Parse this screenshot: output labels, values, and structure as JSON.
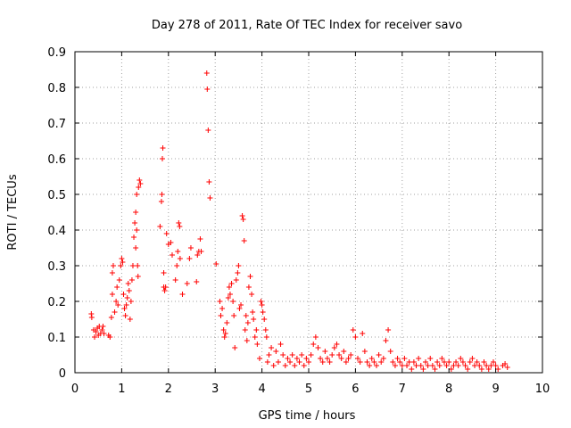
{
  "chart_data": {
    "type": "scatter",
    "title": "Day 278 of 2011, Rate Of TEC Index for receiver savo",
    "xlabel": "GPS time / hours",
    "ylabel": "ROTI / TECUs",
    "xlim": [
      0,
      10
    ],
    "ylim": [
      0,
      0.9
    ],
    "xticks": [
      "0",
      "1",
      "2",
      "3",
      "4",
      "5",
      "6",
      "7",
      "8",
      "9",
      "10"
    ],
    "yticks": [
      "0",
      "0.1",
      "0.2",
      "0.3",
      "0.4",
      "0.5",
      "0.6",
      "0.7",
      "0.8",
      "0.9"
    ],
    "grid": true,
    "marker": "plus",
    "series_color": "#ff0000",
    "series": [
      {
        "name": "ROTI",
        "points": [
          [
            0.35,
            0.165
          ],
          [
            0.36,
            0.155
          ],
          [
            0.4,
            0.12
          ],
          [
            0.42,
            0.1
          ],
          [
            0.45,
            0.115
          ],
          [
            0.48,
            0.125
          ],
          [
            0.5,
            0.105
          ],
          [
            0.52,
            0.13
          ],
          [
            0.55,
            0.11
          ],
          [
            0.58,
            0.12
          ],
          [
            0.6,
            0.13
          ],
          [
            0.62,
            0.11
          ],
          [
            0.72,
            0.105
          ],
          [
            0.75,
            0.1
          ],
          [
            0.78,
            0.155
          ],
          [
            0.8,
            0.22
          ],
          [
            0.8,
            0.28
          ],
          [
            0.82,
            0.3
          ],
          [
            0.85,
            0.17
          ],
          [
            0.88,
            0.2
          ],
          [
            0.9,
            0.24
          ],
          [
            0.92,
            0.19
          ],
          [
            0.95,
            0.26
          ],
          [
            0.98,
            0.3
          ],
          [
            1.0,
            0.32
          ],
          [
            1.02,
            0.31
          ],
          [
            1.04,
            0.22
          ],
          [
            1.06,
            0.18
          ],
          [
            1.08,
            0.16
          ],
          [
            1.1,
            0.19
          ],
          [
            1.12,
            0.21
          ],
          [
            1.14,
            0.25
          ],
          [
            1.16,
            0.23
          ],
          [
            1.18,
            0.15
          ],
          [
            1.2,
            0.2
          ],
          [
            1.22,
            0.26
          ],
          [
            1.24,
            0.3
          ],
          [
            1.26,
            0.38
          ],
          [
            1.28,
            0.42
          ],
          [
            1.3,
            0.45
          ],
          [
            1.32,
            0.4
          ],
          [
            1.34,
            0.3
          ],
          [
            1.36,
            0.52
          ],
          [
            1.38,
            0.54
          ],
          [
            1.4,
            0.53
          ],
          [
            1.3,
            0.35
          ],
          [
            1.35,
            0.27
          ],
          [
            1.32,
            0.5
          ],
          [
            1.82,
            0.41
          ],
          [
            1.85,
            0.48
          ],
          [
            1.86,
            0.5
          ],
          [
            1.87,
            0.6
          ],
          [
            1.88,
            0.63
          ],
          [
            1.9,
            0.28
          ],
          [
            1.9,
            0.24
          ],
          [
            1.92,
            0.23
          ],
          [
            1.94,
            0.24
          ],
          [
            1.96,
            0.39
          ],
          [
            2.0,
            0.36
          ],
          [
            2.05,
            0.365
          ],
          [
            2.08,
            0.33
          ],
          [
            2.15,
            0.26
          ],
          [
            2.18,
            0.3
          ],
          [
            2.2,
            0.34
          ],
          [
            2.22,
            0.42
          ],
          [
            2.24,
            0.41
          ],
          [
            2.25,
            0.32
          ],
          [
            2.3,
            0.22
          ],
          [
            2.4,
            0.25
          ],
          [
            2.45,
            0.32
          ],
          [
            2.48,
            0.35
          ],
          [
            2.6,
            0.255
          ],
          [
            2.62,
            0.33
          ],
          [
            2.65,
            0.34
          ],
          [
            2.68,
            0.375
          ],
          [
            2.7,
            0.34
          ],
          [
            2.82,
            0.84
          ],
          [
            2.83,
            0.795
          ],
          [
            2.85,
            0.68
          ],
          [
            2.87,
            0.535
          ],
          [
            2.89,
            0.49
          ],
          [
            3.02,
            0.305
          ],
          [
            3.1,
            0.2
          ],
          [
            3.12,
            0.16
          ],
          [
            3.15,
            0.18
          ],
          [
            3.18,
            0.12
          ],
          [
            3.2,
            0.1
          ],
          [
            3.22,
            0.11
          ],
          [
            3.25,
            0.14
          ],
          [
            3.28,
            0.21
          ],
          [
            3.3,
            0.24
          ],
          [
            3.32,
            0.22
          ],
          [
            3.35,
            0.25
          ],
          [
            3.38,
            0.2
          ],
          [
            3.4,
            0.16
          ],
          [
            3.42,
            0.07
          ],
          [
            3.45,
            0.26
          ],
          [
            3.48,
            0.28
          ],
          [
            3.5,
            0.3
          ],
          [
            3.52,
            0.18
          ],
          [
            3.55,
            0.19
          ],
          [
            3.58,
            0.44
          ],
          [
            3.6,
            0.43
          ],
          [
            3.62,
            0.37
          ],
          [
            3.64,
            0.12
          ],
          [
            3.66,
            0.16
          ],
          [
            3.68,
            0.09
          ],
          [
            3.7,
            0.14
          ],
          [
            3.72,
            0.24
          ],
          [
            3.75,
            0.27
          ],
          [
            3.78,
            0.22
          ],
          [
            3.8,
            0.17
          ],
          [
            3.82,
            0.15
          ],
          [
            3.85,
            0.1
          ],
          [
            3.88,
            0.12
          ],
          [
            3.9,
            0.08
          ],
          [
            3.95,
            0.04
          ],
          [
            3.98,
            0.2
          ],
          [
            4.0,
            0.19
          ],
          [
            4.02,
            0.17
          ],
          [
            4.05,
            0.15
          ],
          [
            4.08,
            0.12
          ],
          [
            4.1,
            0.1
          ],
          [
            4.12,
            0.03
          ],
          [
            4.15,
            0.05
          ],
          [
            4.2,
            0.07
          ],
          [
            4.25,
            0.02
          ],
          [
            4.3,
            0.06
          ],
          [
            4.35,
            0.03
          ],
          [
            4.4,
            0.08
          ],
          [
            4.45,
            0.05
          ],
          [
            4.5,
            0.02
          ],
          [
            4.55,
            0.04
          ],
          [
            4.6,
            0.03
          ],
          [
            4.65,
            0.05
          ],
          [
            4.7,
            0.02
          ],
          [
            4.75,
            0.04
          ],
          [
            4.8,
            0.03
          ],
          [
            4.85,
            0.05
          ],
          [
            4.9,
            0.02
          ],
          [
            4.95,
            0.04
          ],
          [
            5.0,
            0.03
          ],
          [
            5.05,
            0.05
          ],
          [
            5.1,
            0.08
          ],
          [
            5.15,
            0.1
          ],
          [
            5.2,
            0.07
          ],
          [
            5.25,
            0.04
          ],
          [
            5.3,
            0.03
          ],
          [
            5.35,
            0.06
          ],
          [
            5.4,
            0.04
          ],
          [
            5.45,
            0.03
          ],
          [
            5.5,
            0.05
          ],
          [
            5.55,
            0.07
          ],
          [
            5.6,
            0.08
          ],
          [
            5.65,
            0.05
          ],
          [
            5.7,
            0.04
          ],
          [
            5.75,
            0.06
          ],
          [
            5.8,
            0.03
          ],
          [
            5.85,
            0.04
          ],
          [
            5.9,
            0.05
          ],
          [
            5.95,
            0.12
          ],
          [
            6.0,
            0.1
          ],
          [
            6.05,
            0.04
          ],
          [
            6.1,
            0.03
          ],
          [
            6.15,
            0.11
          ],
          [
            6.2,
            0.06
          ],
          [
            6.25,
            0.03
          ],
          [
            6.3,
            0.02
          ],
          [
            6.35,
            0.04
          ],
          [
            6.4,
            0.03
          ],
          [
            6.45,
            0.02
          ],
          [
            6.5,
            0.05
          ],
          [
            6.55,
            0.03
          ],
          [
            6.6,
            0.04
          ],
          [
            6.65,
            0.09
          ],
          [
            6.7,
            0.12
          ],
          [
            6.75,
            0.06
          ],
          [
            6.8,
            0.03
          ],
          [
            6.85,
            0.02
          ],
          [
            6.9,
            0.04
          ],
          [
            6.95,
            0.03
          ],
          [
            7.0,
            0.02
          ],
          [
            7.05,
            0.04
          ],
          [
            7.1,
            0.02
          ],
          [
            7.15,
            0.03
          ],
          [
            7.2,
            0.01
          ],
          [
            7.25,
            0.03
          ],
          [
            7.3,
            0.02
          ],
          [
            7.35,
            0.04
          ],
          [
            7.4,
            0.02
          ],
          [
            7.45,
            0.01
          ],
          [
            7.5,
            0.03
          ],
          [
            7.55,
            0.02
          ],
          [
            7.6,
            0.04
          ],
          [
            7.65,
            0.02
          ],
          [
            7.7,
            0.01
          ],
          [
            7.75,
            0.03
          ],
          [
            7.8,
            0.02
          ],
          [
            7.85,
            0.04
          ],
          [
            7.9,
            0.03
          ],
          [
            7.95,
            0.02
          ],
          [
            8.0,
            0.03
          ],
          [
            8.05,
            0.01
          ],
          [
            8.1,
            0.02
          ],
          [
            8.15,
            0.03
          ],
          [
            8.2,
            0.02
          ],
          [
            8.25,
            0.04
          ],
          [
            8.3,
            0.03
          ],
          [
            8.35,
            0.02
          ],
          [
            8.4,
            0.01
          ],
          [
            8.45,
            0.03
          ],
          [
            8.5,
            0.04
          ],
          [
            8.55,
            0.02
          ],
          [
            8.6,
            0.03
          ],
          [
            8.65,
            0.02
          ],
          [
            8.7,
            0.01
          ],
          [
            8.75,
            0.03
          ],
          [
            8.8,
            0.02
          ],
          [
            8.85,
            0.01
          ],
          [
            8.9,
            0.02
          ],
          [
            8.95,
            0.03
          ],
          [
            9.0,
            0.02
          ],
          [
            9.05,
            0.01
          ],
          [
            9.15,
            0.02
          ],
          [
            9.2,
            0.025
          ],
          [
            9.25,
            0.015
          ]
        ]
      }
    ]
  }
}
